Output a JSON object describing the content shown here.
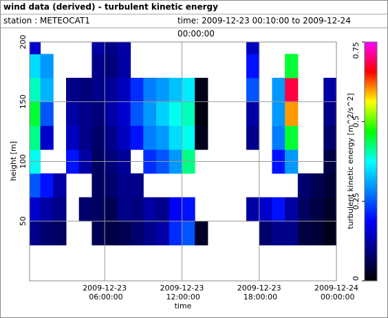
{
  "header": {
    "title": "wind data (derived) - turbulent kinetic energy",
    "station": "station : METEOCAT1",
    "time_range": "time: 2009-12-23 00:10:00 to 2009-12-24 00:00:00"
  },
  "chart_data": {
    "type": "heatmap",
    "xlabel": "time",
    "ylabel": "height [m]",
    "colorbar_label": "turbulent kinetic energy [m^2/s^2]",
    "xlim": [
      "2009-12-23T00:10:00",
      "2009-12-24T00:00:00"
    ],
    "xticks": [
      {
        "value": "2009-12-23T06:00:00",
        "label": "2009-12-23 06:00:00"
      },
      {
        "value": "2009-12-23T12:00:00",
        "label": "2009-12-23 12:00:00"
      },
      {
        "value": "2009-12-23T18:00:00",
        "label": "2009-12-23 18:00:00"
      },
      {
        "value": "2009-12-24T00:00:00",
        "label": "2009-12-24 00:00:00"
      }
    ],
    "ylim": [
      0,
      200
    ],
    "yticks": [
      50,
      100,
      150,
      200
    ],
    "zlim": [
      0,
      0.75
    ],
    "zticks": [
      0,
      0.25,
      0.5,
      0.75
    ],
    "colorscale": [
      "#000000",
      "#000080",
      "#0000ff",
      "#0080ff",
      "#00ffff",
      "#00ff00",
      "#ffff00",
      "#ff0000",
      "#ff00ff"
    ],
    "grid": true,
    "x": [
      "2009-12-23T00:30:00",
      "2009-12-23T01:30:00",
      "2009-12-23T02:30:00",
      "2009-12-23T03:30:00",
      "2009-12-23T04:30:00",
      "2009-12-23T05:30:00",
      "2009-12-23T06:30:00",
      "2009-12-23T07:30:00",
      "2009-12-23T08:30:00",
      "2009-12-23T09:30:00",
      "2009-12-23T10:30:00",
      "2009-12-23T11:30:00",
      "2009-12-23T12:30:00",
      "2009-12-23T13:30:00",
      "2009-12-23T14:30:00",
      "2009-12-23T15:30:00",
      "2009-12-23T16:30:00",
      "2009-12-23T17:30:00",
      "2009-12-23T18:30:00",
      "2009-12-23T19:30:00",
      "2009-12-23T20:30:00",
      "2009-12-23T21:30:00",
      "2009-12-23T22:30:00",
      "2009-12-23T23:30:00"
    ],
    "y": [
      40,
      60,
      80,
      100,
      120,
      140,
      160,
      180,
      200
    ],
    "z": [
      [
        0.1,
        0.08,
        0.07,
        null,
        null,
        0.06,
        0.05,
        0.06,
        0.08,
        0.1,
        0.12,
        0.22,
        0.25,
        0.03,
        null,
        null,
        null,
        null,
        0.08,
        0.1,
        0.1,
        0.05,
        0.04,
        0.02
      ],
      [
        0.15,
        0.12,
        0.1,
        null,
        0.08,
        0.07,
        0.06,
        0.1,
        0.09,
        0.12,
        0.1,
        0.18,
        0.2,
        null,
        null,
        null,
        null,
        0.12,
        0.15,
        0.2,
        0.12,
        0.07,
        0.05,
        0.03
      ],
      [
        0.25,
        0.2,
        0.12,
        null,
        null,
        0.07,
        0.08,
        0.1,
        0.1,
        null,
        null,
        null,
        null,
        null,
        null,
        null,
        null,
        null,
        null,
        null,
        null,
        0.08,
        0.06,
        0.04
      ],
      [
        0.38,
        null,
        null,
        0.2,
        0.12,
        0.07,
        0.09,
        0.11,
        null,
        0.22,
        0.25,
        0.3,
        0.42,
        null,
        null,
        null,
        null,
        null,
        null,
        0.2,
        0.3,
        null,
        null,
        0.05
      ],
      [
        0.42,
        0.15,
        null,
        0.14,
        0.1,
        0.08,
        0.1,
        0.14,
        0.2,
        0.28,
        0.3,
        0.35,
        0.38,
        0.02,
        null,
        null,
        null,
        0.1,
        null,
        0.28,
        0.45,
        null,
        null,
        0.08
      ],
      [
        0.45,
        0.25,
        null,
        0.12,
        0.1,
        0.09,
        0.12,
        0.15,
        0.25,
        0.3,
        0.34,
        0.38,
        0.4,
        0.01,
        null,
        null,
        null,
        0.12,
        null,
        0.3,
        0.6,
        null,
        null,
        0.1
      ],
      [
        0.4,
        0.32,
        null,
        0.1,
        0.09,
        0.1,
        0.11,
        0.14,
        0.22,
        0.28,
        0.3,
        0.33,
        0.36,
        0.02,
        null,
        null,
        null,
        0.25,
        null,
        0.3,
        0.68,
        null,
        null,
        0.12
      ],
      [
        0.35,
        0.3,
        null,
        null,
        null,
        0.1,
        0.09,
        0.12,
        null,
        null,
        null,
        null,
        null,
        null,
        null,
        null,
        null,
        0.2,
        null,
        null,
        0.45,
        null,
        null,
        null
      ],
      [
        0.15,
        null,
        null,
        null,
        null,
        0.12,
        0.1,
        0.12,
        null,
        null,
        null,
        null,
        null,
        null,
        null,
        null,
        null,
        0.14,
        null,
        null,
        null,
        null,
        null,
        null
      ]
    ]
  }
}
